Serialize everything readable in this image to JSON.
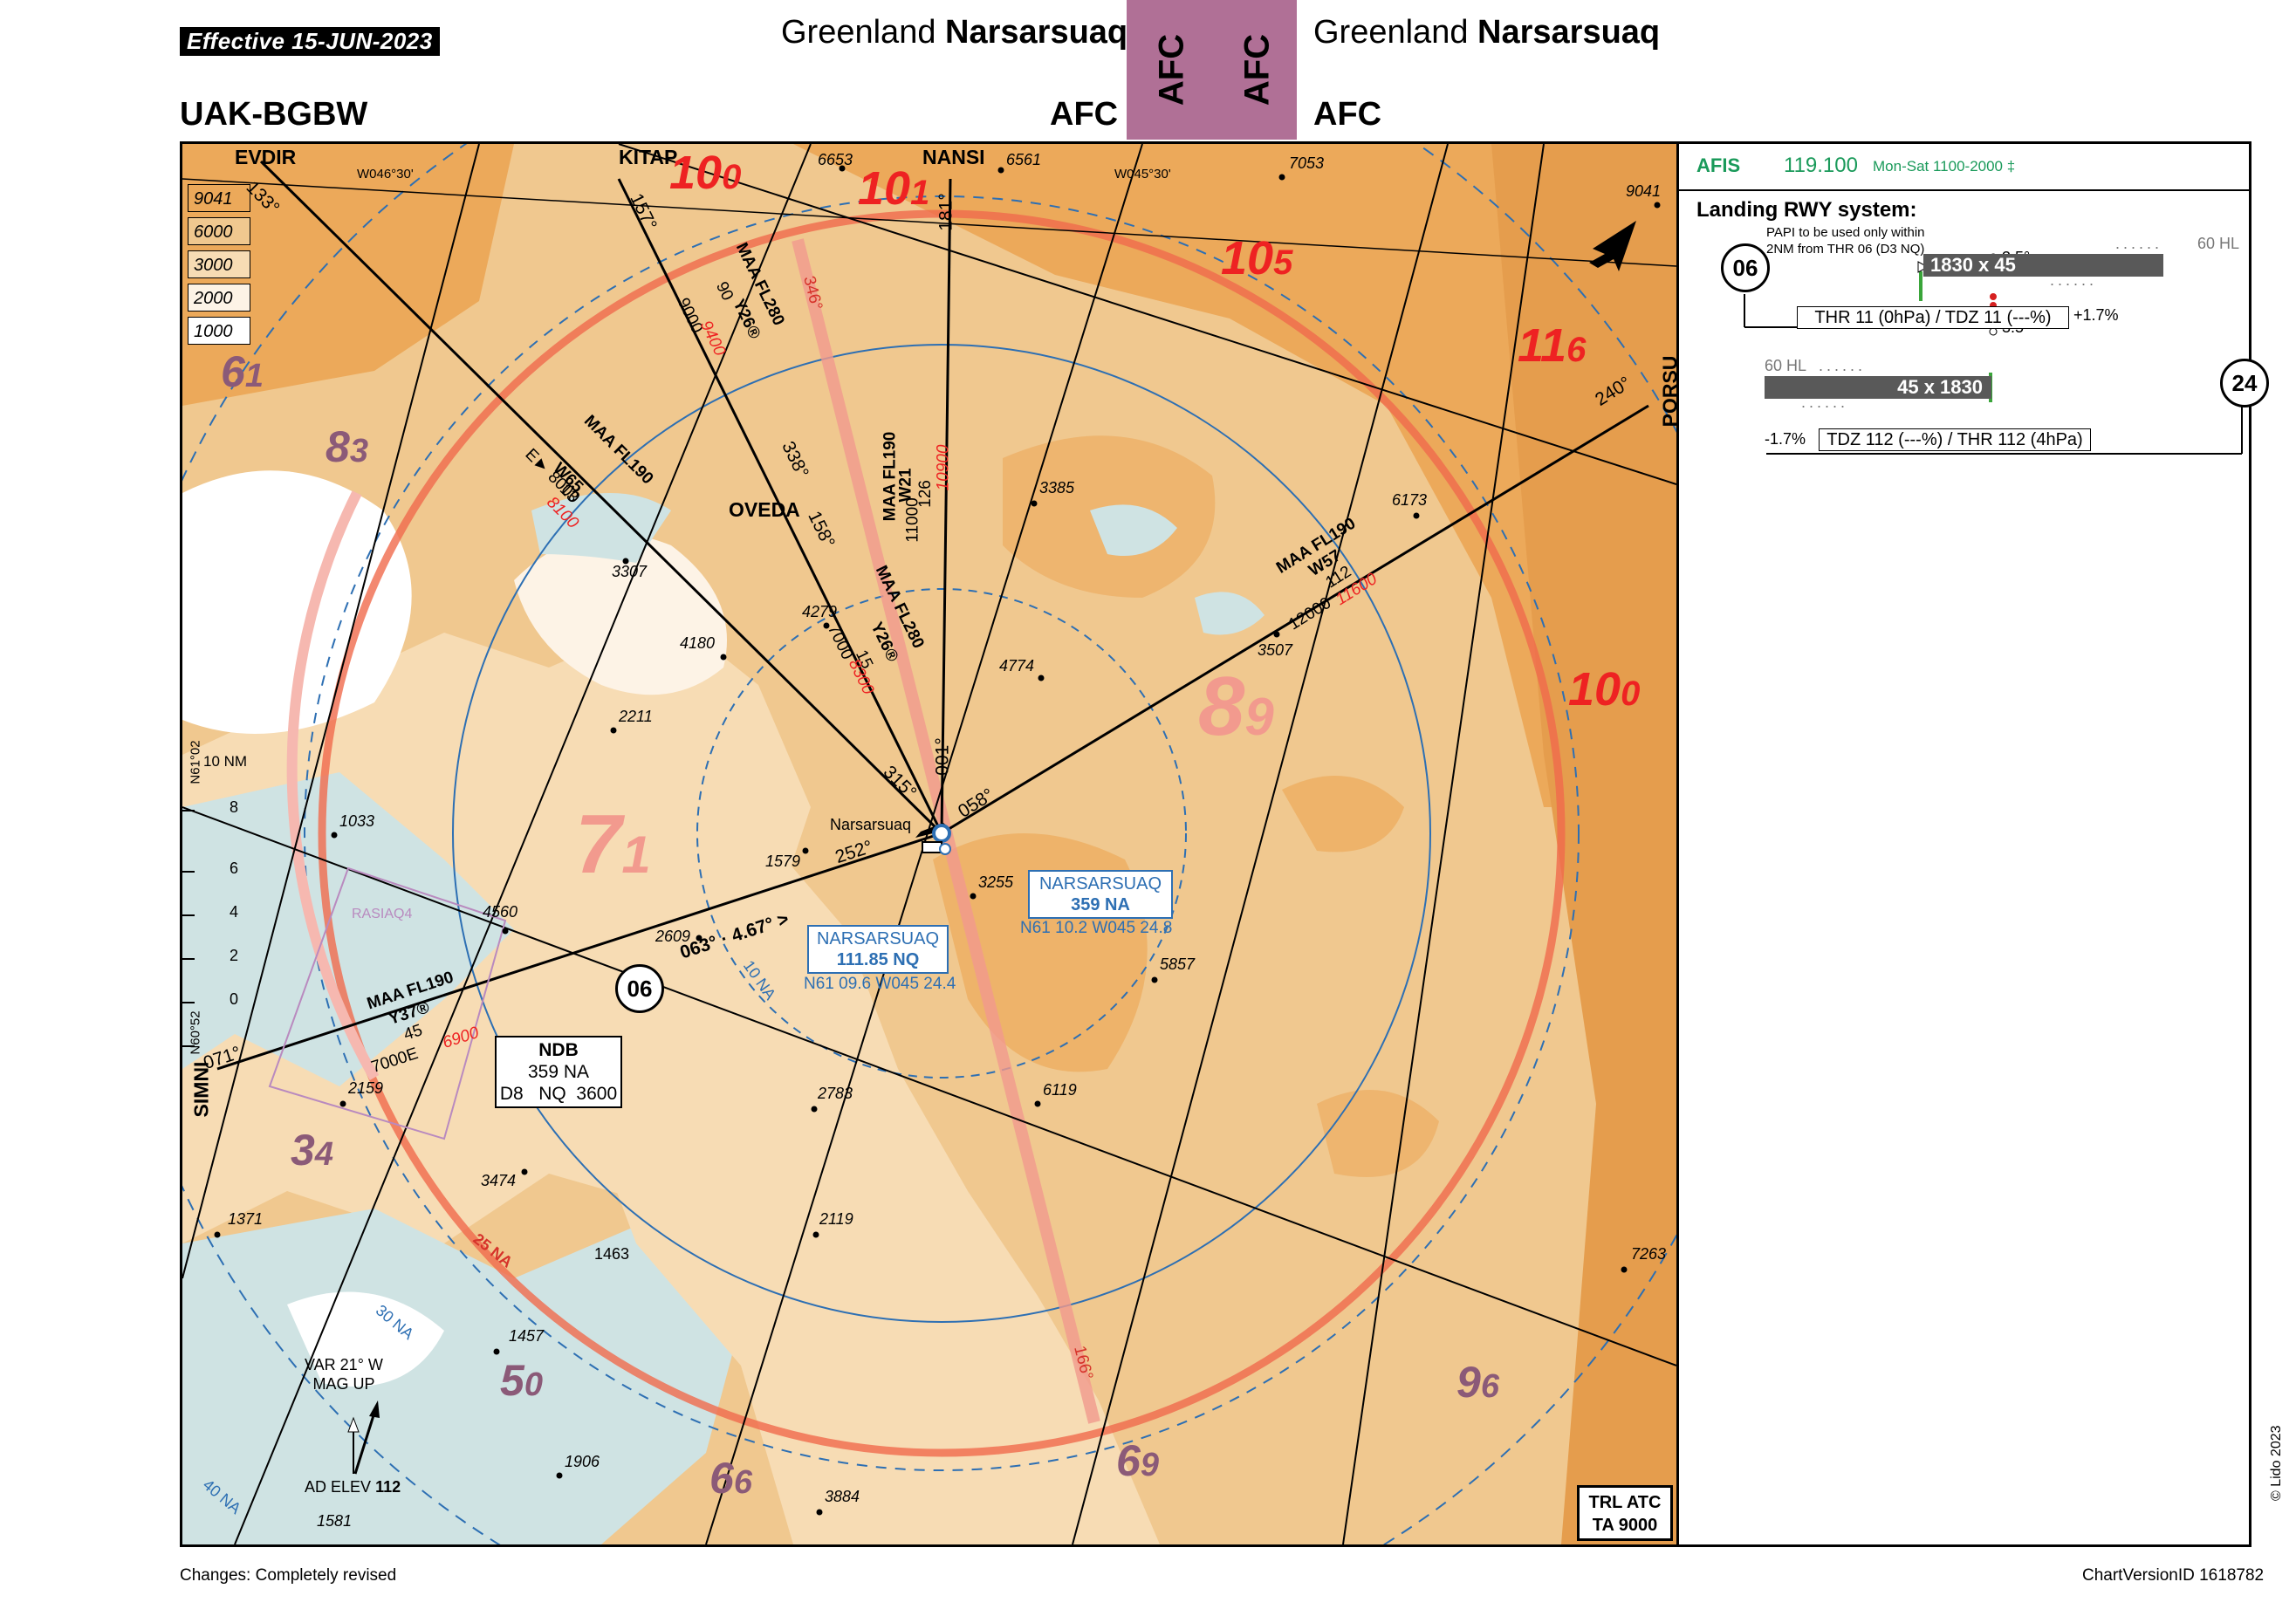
{
  "header": {
    "effective": "Effective  15-JUN-2023",
    "icao_id": "UAK-BGBW",
    "region": "Greenland",
    "airport": "Narsarsuaq",
    "code": "AFC"
  },
  "footer": {
    "changes": "Changes: Completely revised",
    "version": "ChartVersionID 1618782",
    "copyright": "© Lido 2023"
  },
  "panel": {
    "afis_label": "AFIS",
    "afis_freq": "119.100",
    "afis_hours": "Mon-Sat 1100-2000 ‡",
    "rwy_title": "Landing RWY system:",
    "papi_note_1": "PAPI to be used only within",
    "papi_note_2": "2NM from THR 06 (D3 NQ)",
    "rwy06": "06",
    "rwy24": "24",
    "papi_angle": "3.5°",
    "hl": "60 HL",
    "rwy06_dims": "1830 x 45",
    "rwy24_dims": "45 x 1830",
    "thr06_text": "THR 11 (0hPa) / TDZ 11 (---%)",
    "slope06": "+1.7%",
    "thr24_text": "TDZ 112 (---%) / THR 112 (4hPa)",
    "slope24": "-1.7%"
  },
  "map": {
    "legend": [
      "9041",
      "6000",
      "3000",
      "2000",
      "1000"
    ],
    "trl_1": "TRL ATC",
    "trl_2": "TA 9000",
    "ndb_box": {
      "title": "NDB",
      "freq": "359 NA",
      "dist": "D8",
      "id": "NQ",
      "alt": "3600"
    },
    "vor_box": {
      "name": "NARSARSUAQ",
      "freq": "111.85 NQ",
      "coords": "N61 09.6 W045 24.4"
    },
    "ndb2_box": {
      "name": "NARSARSUAQ",
      "freq": "359 NA",
      "coords": "N61 10.2 W045 24.8"
    },
    "var": "VAR 21° W",
    "magup": "MAG UP",
    "ad_elev_label": "AD ELEV",
    "ad_elev": "112",
    "airport_name": "Narsarsuaq",
    "rwy_circle": "06",
    "rasia": "RASIAQ4",
    "fixes": {
      "evdir": "EVDIR",
      "kitap": "KITAP",
      "nansi": "NANSI",
      "oveda": "OVEDA",
      "porsu": "PORSU",
      "simni": "SIMNI"
    },
    "grid": {
      "w046": "W046°30'",
      "w045": "W045°30'",
      "n61": "N61°02",
      "n60": "N60°52",
      "nm10": "10 NM"
    },
    "scale": [
      "8",
      "6",
      "4",
      "2",
      "0"
    ],
    "rings": {
      "r10": "10 NA",
      "r25": "25 NA",
      "r30": "30 NA",
      "r40": "40 NA"
    },
    "msa_sectors": [
      {
        "big": "10",
        "small": "0"
      },
      {
        "big": "10",
        "small": "1"
      },
      {
        "big": "10",
        "small": "5"
      },
      {
        "big": "11",
        "small": "6"
      },
      {
        "big": "10",
        "small": "0"
      },
      {
        "big": "8",
        "small": "9"
      },
      {
        "big": "7",
        "small": "1"
      },
      {
        "big": "6",
        "small": "1"
      },
      {
        "big": "8",
        "small": "3"
      },
      {
        "big": "3",
        "small": "4"
      },
      {
        "big": "5",
        "small": "0"
      },
      {
        "big": "6",
        "small": "6"
      },
      {
        "big": "6",
        "small": "9"
      },
      {
        "big": "9",
        "small": "6"
      }
    ],
    "spot_heights": [
      "6653",
      "6561",
      "7053",
      "9041",
      "6173",
      "3385",
      "3307",
      "4180",
      "4279",
      "4774",
      "3507",
      "2211",
      "1033",
      "4560",
      "1579",
      "3255",
      "2609",
      "5857",
      "2159",
      "2783",
      "6119",
      "3474",
      "2119",
      "1463",
      "1371",
      "1457",
      "1906",
      "3884",
      "1581",
      "7263"
    ],
    "routes": {
      "r133": "133°",
      "r157": "157°",
      "r181": "181°",
      "r346": "346°",
      "r240": "240°",
      "r071": "071°",
      "r338": "338°",
      "r158": "158°",
      "r001": "001°",
      "r058": "058°",
      "r315": "315°",
      "r252": "252°",
      "r166": "166°",
      "r063": "063° · 4.67° >",
      "y26a": "MAA FL280",
      "y26b": "Y26®",
      "y26c": "90",
      "y26d": "9000",
      "y26e": "9400",
      "w65a": "MAA FL190",
      "w65b": "W65",
      "w65c": "13",
      "w65d": "E► 8000",
      "w65e": "8100",
      "w21a": "MAA FL190",
      "w21b": "W21",
      "w21c": "126",
      "w21d": "11000",
      "w21e": "10900",
      "y26f": "MAA FL280",
      "y26g": "Y26®",
      "y26h": "15",
      "y26i": "7000",
      "y26j": "8300",
      "w57a": "MAA FL190",
      "w57b": "W57",
      "w57c": "112",
      "w57d": "12000",
      "w57e": "11600",
      "y37a": "MAA FL190",
      "y37b": "Y37®",
      "y37c": "45",
      "y37d": "7000E",
      "y37e": "6900"
    }
  },
  "colors": {
    "terrain_high": "#eca95a",
    "terrain_mid": "#f0c88f",
    "terrain_low": "#f7dcb4",
    "water": "#cfe3e3",
    "msa_red": "#ee2222",
    "msa_purple": "#8b5a78",
    "navaid_blue": "#2d6fb3",
    "ring_red": "#f06a4c",
    "afis_green": "#1a9a5a",
    "header_box": "#b07096"
  }
}
